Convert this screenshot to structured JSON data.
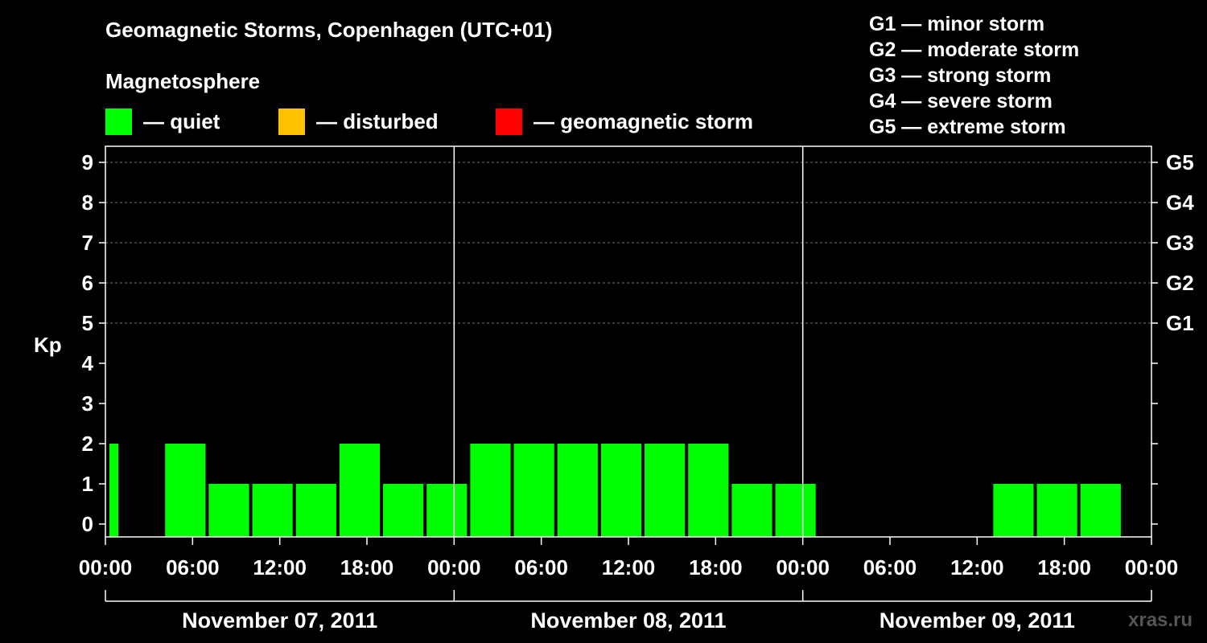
{
  "title": "Geomagnetic Storms, Copenhagen (UTC+01)",
  "subtitle": "Magnetosphere",
  "legend": [
    {
      "label": "— quiet",
      "color": "#00ff00"
    },
    {
      "label": "— disturbed",
      "color": "#ffc000"
    },
    {
      "label": "— geomagnetic storm",
      "color": "#ff0000"
    }
  ],
  "storm_scale": [
    "G1 — minor storm",
    "G2 — moderate storm",
    "G3 — strong storm",
    "G4 — severe storm",
    "G5 — extreme storm"
  ],
  "watermark": "xras.ru",
  "chart_data": {
    "type": "bar",
    "ylabel": "Kp",
    "ylim": [
      0,
      9
    ],
    "yticks": [
      "0",
      "1",
      "2",
      "3",
      "4",
      "5",
      "6",
      "7",
      "8",
      "9"
    ],
    "right_ticks": [
      {
        "kp": 5,
        "label": "G1"
      },
      {
        "kp": 6,
        "label": "G2"
      },
      {
        "kp": 7,
        "label": "G3"
      },
      {
        "kp": 8,
        "label": "G4"
      },
      {
        "kp": 9,
        "label": "G5"
      }
    ],
    "x_hours_range": [
      0,
      72
    ],
    "xtick_labels": [
      "00:00",
      "06:00",
      "12:00",
      "18:00",
      "00:00",
      "06:00",
      "12:00",
      "18:00",
      "00:00",
      "06:00",
      "12:00",
      "18:00",
      "00:00"
    ],
    "day_labels": [
      "November 07, 2011",
      "November 08, 2011",
      "November 09, 2011"
    ],
    "grid_levels": [
      5,
      6,
      7,
      8,
      9
    ],
    "bar_color": "#00ff00",
    "bars": [
      {
        "start": 0,
        "end": 1,
        "kp": 2
      },
      {
        "start": 4,
        "end": 7,
        "kp": 2
      },
      {
        "start": 7,
        "end": 10,
        "kp": 1
      },
      {
        "start": 10,
        "end": 13,
        "kp": 1
      },
      {
        "start": 13,
        "end": 16,
        "kp": 1
      },
      {
        "start": 16,
        "end": 19,
        "kp": 2
      },
      {
        "start": 19,
        "end": 22,
        "kp": 1
      },
      {
        "start": 22,
        "end": 25,
        "kp": 1
      },
      {
        "start": 25,
        "end": 28,
        "kp": 2
      },
      {
        "start": 28,
        "end": 31,
        "kp": 2
      },
      {
        "start": 31,
        "end": 34,
        "kp": 2
      },
      {
        "start": 34,
        "end": 37,
        "kp": 2
      },
      {
        "start": 37,
        "end": 40,
        "kp": 2
      },
      {
        "start": 40,
        "end": 43,
        "kp": 2
      },
      {
        "start": 43,
        "end": 46,
        "kp": 1
      },
      {
        "start": 46,
        "end": 49,
        "kp": 1
      },
      {
        "start": 61,
        "end": 64,
        "kp": 1
      },
      {
        "start": 64,
        "end": 67,
        "kp": 1
      },
      {
        "start": 67,
        "end": 70,
        "kp": 1
      }
    ]
  }
}
